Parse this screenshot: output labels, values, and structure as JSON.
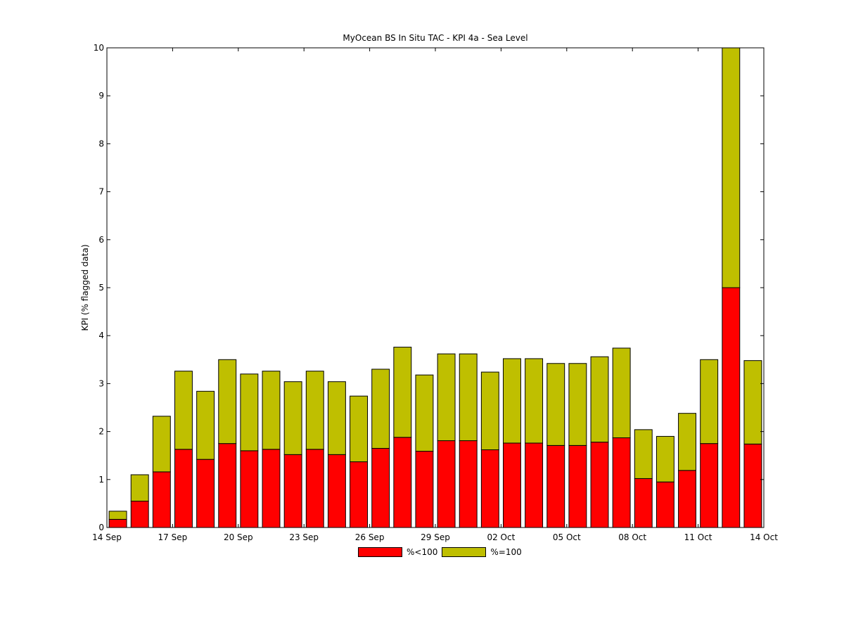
{
  "chart_data": {
    "type": "bar",
    "stacked": true,
    "title": "MyOcean  BS In Situ TAC - KPI 4a - Sea Level",
    "xlabel": "",
    "ylabel": "KPI (% flagged data)",
    "ylim": [
      0,
      10
    ],
    "yticks": [
      0,
      1,
      2,
      3,
      4,
      5,
      6,
      7,
      8,
      9,
      10
    ],
    "xlim": [
      "2013-09-14",
      "2013-10-14"
    ],
    "xticks": [
      {
        "date": "2013-09-14",
        "label": "14 Sep"
      },
      {
        "date": "2013-09-17",
        "label": "17 Sep"
      },
      {
        "date": "2013-09-20",
        "label": "20 Sep"
      },
      {
        "date": "2013-09-23",
        "label": "23 Sep"
      },
      {
        "date": "2013-09-26",
        "label": "26 Sep"
      },
      {
        "date": "2013-09-29",
        "label": "29 Sep"
      },
      {
        "date": "2013-10-02",
        "label": "02 Oct"
      },
      {
        "date": "2013-10-05",
        "label": "05 Oct"
      },
      {
        "date": "2013-10-08",
        "label": "08 Oct"
      },
      {
        "date": "2013-10-11",
        "label": "11 Oct"
      },
      {
        "date": "2013-10-14",
        "label": "14 Oct"
      }
    ],
    "x": [
      "2013-09-15",
      "2013-09-16",
      "2013-09-17",
      "2013-09-18",
      "2013-09-19",
      "2013-09-20",
      "2013-09-21",
      "2013-09-22",
      "2013-09-23",
      "2013-09-24",
      "2013-09-25",
      "2013-09-26",
      "2013-09-27",
      "2013-09-28",
      "2013-09-29",
      "2013-09-30",
      "2013-10-01",
      "2013-10-02",
      "2013-10-03",
      "2013-10-04",
      "2013-10-05",
      "2013-10-06",
      "2013-10-07",
      "2013-10-08",
      "2013-10-09",
      "2013-10-10",
      "2013-10-11",
      "2013-10-12",
      "2013-10-13",
      "2013-10-14"
    ],
    "series": [
      {
        "name": "%<100",
        "color": "#ff0000",
        "values": [
          0.17,
          0.55,
          1.16,
          1.63,
          1.42,
          1.75,
          1.6,
          1.63,
          1.52,
          1.63,
          1.52,
          1.37,
          1.65,
          1.88,
          1.59,
          1.81,
          1.81,
          1.62,
          1.76,
          1.76,
          1.71,
          1.71,
          1.78,
          1.87,
          1.02,
          0.95,
          1.19,
          1.75,
          5.0,
          1.74
        ]
      },
      {
        "name": "%=100",
        "color": "#bfbf00",
        "values": [
          0.17,
          0.55,
          1.16,
          1.63,
          1.42,
          1.75,
          1.6,
          1.63,
          1.52,
          1.63,
          1.52,
          1.37,
          1.65,
          1.88,
          1.59,
          1.81,
          1.81,
          1.62,
          1.76,
          1.76,
          1.71,
          1.71,
          1.78,
          1.87,
          1.02,
          0.95,
          1.19,
          1.75,
          5.0,
          1.74
        ]
      }
    ],
    "grid": false,
    "legend_position": "bottom-center"
  }
}
